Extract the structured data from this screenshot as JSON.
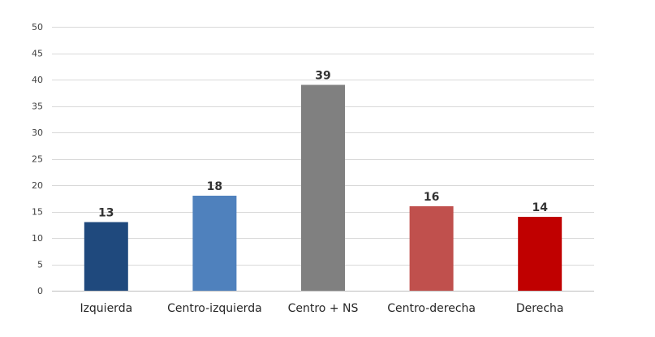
{
  "chart_data": {
    "type": "bar",
    "title": "",
    "xlabel": "",
    "ylabel": "",
    "categories": [
      "Izquierda",
      "Centro-izquierda",
      "Centro + NS",
      "Centro-derecha",
      "Derecha"
    ],
    "values": [
      13,
      18,
      39,
      16,
      14
    ],
    "data_labels": [
      "13",
      "18",
      "39",
      "16",
      "14"
    ],
    "colors": [
      "#1f497d",
      "#4f81bd",
      "#808080",
      "#c0504d",
      "#c00000"
    ],
    "ylim": [
      0,
      50
    ],
    "yticks": [
      0,
      5,
      10,
      15,
      20,
      25,
      30,
      35,
      40,
      45,
      50
    ],
    "ytick_labels": [
      "0",
      "5",
      "10",
      "15",
      "20",
      "25",
      "30",
      "35",
      "40",
      "45",
      "50"
    ],
    "grid": true,
    "legend": "none"
  }
}
